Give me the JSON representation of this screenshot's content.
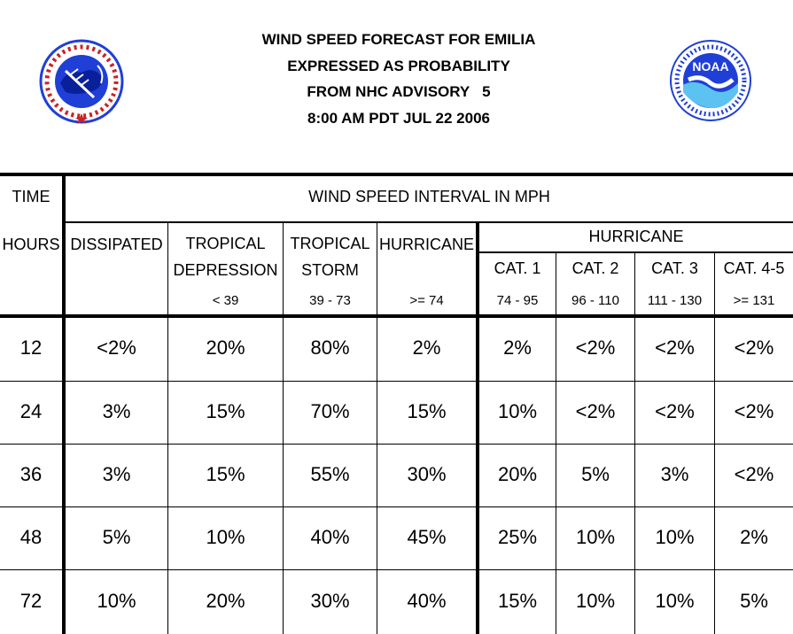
{
  "title": {
    "line1": "WIND SPEED FORECAST FOR EMILIA",
    "line2": "EXPRESSED AS PROBABILITY",
    "line3": "FROM NHC ADVISORY   5",
    "line4": "8:00 AM PDT JUL 22 2006"
  },
  "logos": {
    "left": "National Weather Service",
    "right": "NOAA",
    "left_color": "#1f3fd6",
    "right_color": "#1f3fd6"
  },
  "header": {
    "time_label": "TIME",
    "interval_label": "WIND SPEED INTERVAL IN MPH",
    "hours_label": "HOURS",
    "hurricane_group_label": "HURRICANE",
    "columns": [
      {
        "line1": "DISSIPATED",
        "line2": "",
        "range": ""
      },
      {
        "line1": "TROPICAL",
        "line2": "DEPRESSION",
        "range": "< 39"
      },
      {
        "line1": "TROPICAL",
        "line2": "STORM",
        "range": "39 - 73"
      },
      {
        "line1": "HURRICANE",
        "line2": "",
        "range": ">= 74"
      },
      {
        "line1": "CAT. 1",
        "line2": "",
        "range": "74 - 95"
      },
      {
        "line1": "CAT. 2",
        "line2": "",
        "range": "96 - 110"
      },
      {
        "line1": "CAT. 3",
        "line2": "",
        "range": "111 - 130"
      },
      {
        "line1": "CAT. 4-5",
        "line2": "",
        "range": ">= 131"
      }
    ]
  },
  "rows": [
    {
      "hours": "12",
      "values": [
        "<2%",
        "20%",
        "80%",
        "2%",
        "2%",
        "<2%",
        "<2%",
        "<2%"
      ]
    },
    {
      "hours": "24",
      "values": [
        "3%",
        "15%",
        "70%",
        "15%",
        "10%",
        "<2%",
        "<2%",
        "<2%"
      ]
    },
    {
      "hours": "36",
      "values": [
        "3%",
        "15%",
        "55%",
        "30%",
        "20%",
        "5%",
        "3%",
        "<2%"
      ]
    },
    {
      "hours": "48",
      "values": [
        "5%",
        "10%",
        "40%",
        "45%",
        "25%",
        "10%",
        "10%",
        "2%"
      ]
    },
    {
      "hours": "72",
      "values": [
        "10%",
        "20%",
        "30%",
        "40%",
        "15%",
        "10%",
        "10%",
        "5%"
      ]
    }
  ]
}
